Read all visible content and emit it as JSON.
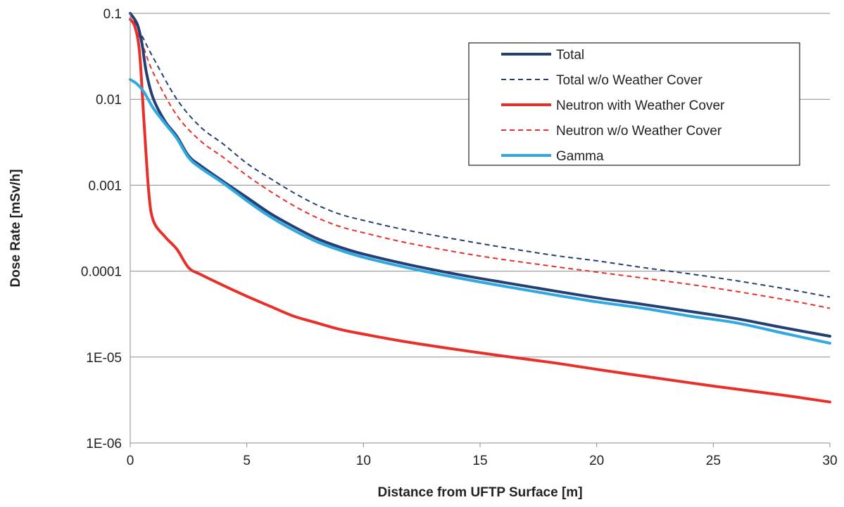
{
  "chart_data": {
    "type": "line",
    "title": "",
    "xlabel": "Distance from UFTP Surface [m]",
    "ylabel": "Dose Rate [mSv/h]",
    "xlim": [
      0,
      30
    ],
    "ylim": [
      1e-06,
      0.1
    ],
    "yscale": "log",
    "grid": "horizontal",
    "legend_position": "top-right",
    "x_ticks": [
      "0",
      "5",
      "10",
      "15",
      "20",
      "25",
      "30"
    ],
    "y_ticks": [
      "1E-06",
      "1E-05",
      "0.0001",
      "0.001",
      "0.01",
      "0.1"
    ],
    "series": [
      {
        "name": "Total",
        "color": "#243f73",
        "style": "solid",
        "points": [
          [
            0,
            0.1
          ],
          [
            0.3,
            0.075
          ],
          [
            0.5,
            0.045
          ],
          [
            0.7,
            0.02
          ],
          [
            1.0,
            0.01
          ],
          [
            1.5,
            0.0055
          ],
          [
            2.0,
            0.0037
          ],
          [
            2.5,
            0.0022
          ],
          [
            3,
            0.0017
          ],
          [
            4,
            0.0011
          ],
          [
            5,
            0.00072
          ],
          [
            6,
            0.00047
          ],
          [
            7,
            0.00033
          ],
          [
            8,
            0.00024
          ],
          [
            9,
            0.00019
          ],
          [
            10,
            0.000158
          ],
          [
            12,
            0.000118
          ],
          [
            14,
            9.2e-05
          ],
          [
            16,
            7.4e-05
          ],
          [
            18,
            6e-05
          ],
          [
            20,
            4.9e-05
          ],
          [
            22,
            4.1e-05
          ],
          [
            24,
            3.4e-05
          ],
          [
            26,
            2.8e-05
          ],
          [
            28,
            2.2e-05
          ],
          [
            30,
            1.75e-05
          ]
        ]
      },
      {
        "name": "Total w/o Weather Cover",
        "color": "#243f73",
        "style": "dashed",
        "points": [
          [
            0,
            0.1
          ],
          [
            0.5,
            0.055
          ],
          [
            1.0,
            0.03
          ],
          [
            2.0,
            0.01
          ],
          [
            3.0,
            0.0048
          ],
          [
            4,
            0.003
          ],
          [
            5,
            0.0018
          ],
          [
            6,
            0.0012
          ],
          [
            7,
            0.00082
          ],
          [
            8,
            0.00059
          ],
          [
            9,
            0.00046
          ],
          [
            10,
            0.00039
          ],
          [
            12,
            0.000295
          ],
          [
            15,
            0.00021
          ],
          [
            18,
            0.000155
          ],
          [
            20,
            0.000132
          ],
          [
            22,
            0.00011
          ],
          [
            25,
            8.5e-05
          ],
          [
            28,
            6.3e-05
          ],
          [
            30,
            5e-05
          ]
        ]
      },
      {
        "name": "Neutron with Weather Cover",
        "color": "#e8302a",
        "style": "solid",
        "points": [
          [
            0,
            0.085
          ],
          [
            0.2,
            0.07
          ],
          [
            0.4,
            0.035
          ],
          [
            0.6,
            0.005
          ],
          [
            0.8,
            0.0008
          ],
          [
            1.0,
            0.00038
          ],
          [
            1.5,
            0.00025
          ],
          [
            2.0,
            0.00018
          ],
          [
            2.5,
            0.00011
          ],
          [
            3,
            9.2e-05
          ],
          [
            4,
            6.8e-05
          ],
          [
            5,
            5.1e-05
          ],
          [
            6,
            3.9e-05
          ],
          [
            7,
            3e-05
          ],
          [
            8,
            2.5e-05
          ],
          [
            9,
            2.1e-05
          ],
          [
            10,
            1.85e-05
          ],
          [
            12,
            1.48e-05
          ],
          [
            15,
            1.12e-05
          ],
          [
            18,
            8.7e-06
          ],
          [
            20,
            7.2e-06
          ],
          [
            22,
            6e-06
          ],
          [
            25,
            4.6e-06
          ],
          [
            28,
            3.6e-06
          ],
          [
            30,
            3e-06
          ]
        ]
      },
      {
        "name": "Neutron w/o Weather Cover",
        "color": "#e8302a",
        "style": "dashed",
        "points": [
          [
            0,
            0.09
          ],
          [
            0.5,
            0.045
          ],
          [
            1.0,
            0.02
          ],
          [
            2.0,
            0.0065
          ],
          [
            3.0,
            0.0033
          ],
          [
            4,
            0.0021
          ],
          [
            5,
            0.0013
          ],
          [
            6,
            0.00085
          ],
          [
            7,
            0.00058
          ],
          [
            8,
            0.00042
          ],
          [
            9,
            0.00033
          ],
          [
            10,
            0.00028
          ],
          [
            12,
            0.00021
          ],
          [
            15,
            0.00015
          ],
          [
            18,
            0.000115
          ],
          [
            20,
            9.75e-05
          ],
          [
            22,
            8.3e-05
          ],
          [
            25,
            6.4e-05
          ],
          [
            28,
            4.7e-05
          ],
          [
            30,
            3.7e-05
          ]
        ]
      },
      {
        "name": "Gamma",
        "color": "#31a9e0",
        "style": "solid",
        "points": [
          [
            0,
            0.017
          ],
          [
            0.3,
            0.015
          ],
          [
            0.6,
            0.012
          ],
          [
            1.0,
            0.0078
          ],
          [
            1.5,
            0.0052
          ],
          [
            2.0,
            0.0035
          ],
          [
            2.5,
            0.0021
          ],
          [
            3,
            0.0016
          ],
          [
            4,
            0.00105
          ],
          [
            5,
            0.00066
          ],
          [
            6,
            0.00043
          ],
          [
            7,
            0.0003
          ],
          [
            8,
            0.00022
          ],
          [
            9,
            0.000175
          ],
          [
            10,
            0.000145
          ],
          [
            12,
            0.000108
          ],
          [
            14,
            8.4e-05
          ],
          [
            16,
            6.7e-05
          ],
          [
            18,
            5.4e-05
          ],
          [
            20,
            4.4e-05
          ],
          [
            22,
            3.7e-05
          ],
          [
            24,
            3e-05
          ],
          [
            26,
            2.5e-05
          ],
          [
            28,
            1.9e-05
          ],
          [
            30,
            1.45e-05
          ]
        ]
      }
    ]
  }
}
